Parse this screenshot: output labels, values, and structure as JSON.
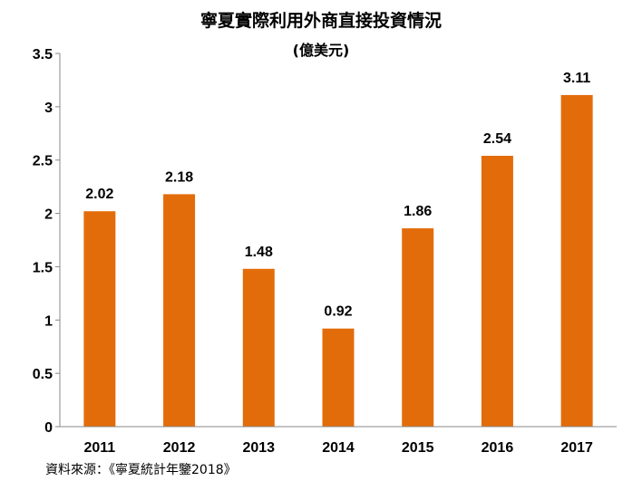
{
  "chart_data": {
    "type": "bar",
    "title": "寧夏實際利用外商直接投資情況",
    "subtitle": "(億美元)",
    "categories": [
      "2011",
      "2012",
      "2013",
      "2014",
      "2015",
      "2016",
      "2017"
    ],
    "values": [
      2.02,
      2.18,
      1.48,
      0.92,
      1.86,
      2.54,
      3.11
    ],
    "value_labels": [
      "2.02",
      "2.18",
      "1.48",
      "0.92",
      "1.86",
      "2.54",
      "3.11"
    ],
    "yticks": [
      "0",
      "0.5",
      "1",
      "1.5",
      "2",
      "2.5",
      "3",
      "3.5"
    ],
    "ylim": [
      0,
      3.5
    ],
    "xlabel": "",
    "ylabel": "",
    "grid": false,
    "legend": "none",
    "bar_color": "#E36C0A"
  },
  "source": "資料來源：《寧夏統計年鑒2018》"
}
